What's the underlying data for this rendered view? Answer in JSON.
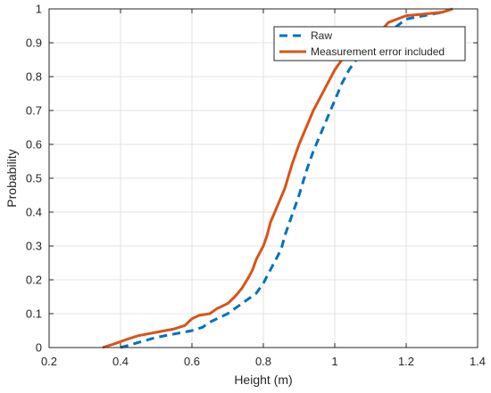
{
  "chart_data": {
    "type": "line",
    "title": "",
    "xlabel": "Height (m)",
    "ylabel": "Probability",
    "xlim": [
      0.2,
      1.4
    ],
    "ylim": [
      0,
      1
    ],
    "xticks": [
      0.2,
      0.4,
      0.6,
      0.8,
      1,
      1.2,
      1.4
    ],
    "xtick_labels": [
      "0.2",
      "0.4",
      "0.6",
      "0.8",
      "1",
      "1.2",
      "1.4"
    ],
    "yticks": [
      0,
      0.1,
      0.2,
      0.3,
      0.4,
      0.5,
      0.6,
      0.7,
      0.8,
      0.9,
      1
    ],
    "ytick_labels": [
      "0",
      "0.1",
      "0.2",
      "0.3",
      "0.4",
      "0.5",
      "0.6",
      "0.7",
      "0.8",
      "0.9",
      "1"
    ],
    "grid": true,
    "legend_position": "top-right",
    "series": [
      {
        "name": "Raw",
        "color": "#0072BD",
        "line_style": "dashed",
        "x": [
          0.4,
          0.45,
          0.5,
          0.55,
          0.6,
          0.63,
          0.65,
          0.68,
          0.7,
          0.72,
          0.74,
          0.76,
          0.78,
          0.8,
          0.82,
          0.84,
          0.85,
          0.86,
          0.88,
          0.9,
          0.92,
          0.94,
          0.96,
          0.98,
          1.0,
          1.02,
          1.04,
          1.06,
          1.1,
          1.15,
          1.2,
          1.25,
          1.3,
          1.33
        ],
        "y": [
          0.0,
          0.015,
          0.03,
          0.04,
          0.05,
          0.06,
          0.075,
          0.09,
          0.1,
          0.115,
          0.13,
          0.145,
          0.16,
          0.19,
          0.23,
          0.27,
          0.29,
          0.33,
          0.39,
          0.45,
          0.52,
          0.58,
          0.63,
          0.68,
          0.73,
          0.78,
          0.82,
          0.85,
          0.88,
          0.93,
          0.97,
          0.98,
          0.99,
          1.0
        ]
      },
      {
        "name": "Measurement error included",
        "color": "#D95319",
        "line_style": "solid",
        "x": [
          0.35,
          0.38,
          0.42,
          0.45,
          0.5,
          0.55,
          0.58,
          0.6,
          0.62,
          0.65,
          0.67,
          0.7,
          0.72,
          0.74,
          0.76,
          0.77,
          0.78,
          0.79,
          0.8,
          0.81,
          0.82,
          0.84,
          0.86,
          0.88,
          0.9,
          0.92,
          0.94,
          0.96,
          0.98,
          1.0,
          1.02,
          1.05,
          1.1,
          1.15,
          1.2,
          1.25,
          1.3,
          1.33
        ],
        "y": [
          0.0,
          0.01,
          0.025,
          0.035,
          0.045,
          0.055,
          0.065,
          0.085,
          0.095,
          0.1,
          0.115,
          0.13,
          0.15,
          0.175,
          0.21,
          0.23,
          0.26,
          0.28,
          0.3,
          0.33,
          0.37,
          0.42,
          0.47,
          0.54,
          0.6,
          0.65,
          0.7,
          0.74,
          0.78,
          0.82,
          0.85,
          0.87,
          0.9,
          0.96,
          0.98,
          0.985,
          0.99,
          1.0
        ]
      }
    ]
  }
}
